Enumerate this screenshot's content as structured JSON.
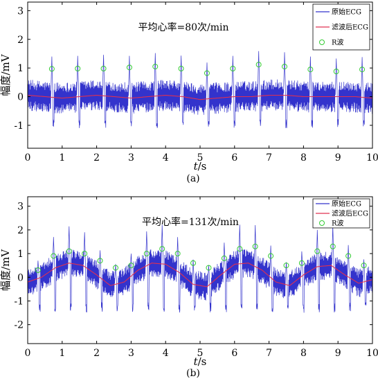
{
  "chart_data": [
    {
      "type": "line",
      "panel_label": "(a)",
      "annotation": "平均心率=80次/min",
      "xlabel_italic": "t",
      "xlabel_unit": "/s",
      "ylabel": "幅度/mV",
      "xlim": [
        0,
        10
      ],
      "ylim": [
        -1.8,
        3.3
      ],
      "xticks": [
        0,
        1,
        2,
        3,
        4,
        5,
        6,
        7,
        8,
        9,
        10
      ],
      "yticks": [
        -1,
        0,
        1,
        2,
        3
      ],
      "grid": false,
      "legend_position": "top-right",
      "series": [
        {
          "name": "原始ECG",
          "color": "#3333cc",
          "style": "solid-line",
          "baseline_noise_amplitude": 0.55,
          "r_peak_amplitude": 1.45,
          "s_trough": -1.1
        },
        {
          "name": "滤波后ECG",
          "color": "#e03050",
          "style": "solid-line",
          "x": [
            0,
            0.5,
            1,
            1.5,
            2,
            2.5,
            3,
            3.5,
            4,
            4.5,
            5,
            5.5,
            6,
            6.5,
            7,
            7.5,
            8,
            8.5,
            9,
            9.5,
            10
          ],
          "values": [
            0.05,
            0.0,
            -0.05,
            0.0,
            0.05,
            0.0,
            -0.05,
            0.0,
            0.05,
            0.0,
            -0.1,
            -0.05,
            0.0,
            0.0,
            0.05,
            0.05,
            0.0,
            0.0,
            0.0,
            0.0,
            -0.05
          ]
        },
        {
          "name": "R波",
          "color": "#33cc33",
          "style": "open-circle-marker",
          "x": [
            0.7,
            1.45,
            2.2,
            2.95,
            3.7,
            4.45,
            5.2,
            5.95,
            6.7,
            7.45,
            8.2,
            8.95,
            9.7
          ],
          "values": [
            0.97,
            0.98,
            0.98,
            1.02,
            1.05,
            0.98,
            0.82,
            0.98,
            1.12,
            1.05,
            0.95,
            0.88,
            0.95
          ]
        }
      ]
    },
    {
      "type": "line",
      "panel_label": "(b)",
      "annotation": "平均心率=131次/min",
      "xlabel_italic": "t",
      "xlabel_unit": "/s",
      "ylabel": "幅度/mV",
      "xlim": [
        0,
        10
      ],
      "ylim": [
        -2.8,
        3.4
      ],
      "xticks": [
        0,
        1,
        2,
        3,
        4,
        5,
        6,
        7,
        8,
        9,
        10
      ],
      "yticks": [
        -2,
        -1,
        0,
        1,
        2,
        3
      ],
      "grid": false,
      "legend_position": "top-right",
      "series": [
        {
          "name": "原始ECG",
          "color": "#3333cc",
          "style": "solid-line",
          "baseline_noise_amplitude": 0.6,
          "r_peak_amplitude": 1.3,
          "s_trough": -1.5,
          "baseline_wander_amplitude": 0.5,
          "baseline_wander_period": 2.6
        },
        {
          "name": "滤波后ECG",
          "color": "#e03050",
          "style": "solid-line",
          "x": [
            0,
            0.4,
            0.8,
            1.2,
            1.6,
            2.0,
            2.4,
            2.8,
            3.2,
            3.6,
            4.0,
            4.4,
            4.8,
            5.2,
            5.6,
            6.0,
            6.4,
            6.8,
            7.2,
            7.6,
            8.0,
            8.4,
            8.8,
            9.2,
            9.6,
            10
          ],
          "values": [
            -0.2,
            0.0,
            0.4,
            0.6,
            0.5,
            0.1,
            -0.35,
            -0.2,
            0.3,
            0.6,
            0.55,
            0.2,
            -0.3,
            -0.4,
            0.1,
            0.55,
            0.6,
            0.3,
            -0.2,
            -0.35,
            0.1,
            0.45,
            0.5,
            0.1,
            -0.25,
            -0.1
          ]
        },
        {
          "name": "R波",
          "color": "#33cc33",
          "style": "open-circle-marker",
          "x": [
            0.3,
            0.75,
            1.2,
            1.65,
            2.1,
            2.55,
            3.0,
            3.45,
            3.9,
            4.35,
            4.8,
            5.25,
            5.7,
            6.15,
            6.6,
            7.05,
            7.5,
            7.95,
            8.4,
            8.85,
            9.3,
            9.75
          ],
          "values": [
            0.3,
            0.9,
            1.1,
            1.0,
            0.7,
            0.4,
            0.5,
            1.0,
            1.2,
            1.0,
            0.6,
            0.4,
            0.8,
            1.2,
            1.3,
            0.9,
            0.5,
            0.6,
            1.1,
            1.3,
            0.9,
            0.5
          ]
        }
      ]
    }
  ]
}
